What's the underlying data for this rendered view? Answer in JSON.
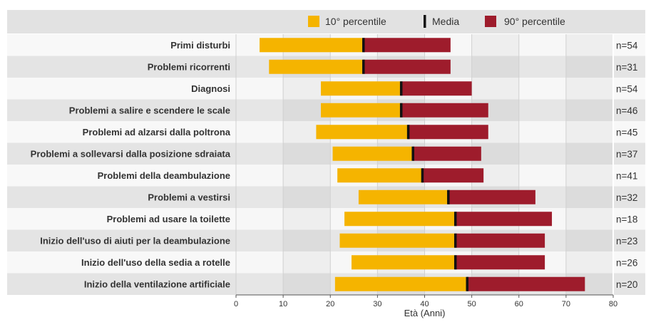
{
  "chart_data": {
    "type": "bar",
    "orientation": "horizontal-range",
    "xlabel": "Età (Anni)",
    "xlim": [
      0,
      80
    ],
    "xticks": [
      0,
      10,
      20,
      30,
      40,
      50,
      60,
      70,
      80
    ],
    "legend": {
      "position": "top",
      "items": [
        {
          "label": "10° percentile",
          "color": "#f5b400",
          "marker": "square"
        },
        {
          "label": "Media",
          "color": "#111111",
          "marker": "bar"
        },
        {
          "label": "90° percentile",
          "color": "#9e1c2c",
          "marker": "square"
        }
      ]
    },
    "colors": {
      "p10": "#f5b400",
      "mean": "#111111",
      "p90": "#9e1c2c"
    },
    "categories": [
      "Primi disturbi",
      "Problemi ricorrenti",
      "Diagnosi",
      "Problemi a salire e scendere le scale",
      "Problemi ad alzarsi dalla poltrona",
      "Problemi a sollevarsi dalla posizione sdraiata",
      "Problemi della deambulazione",
      "Problemi a vestirsi",
      "Problemi ad usare la toilette",
      "Inizio dell'uso di aiuti per la deambulazione",
      "Inizio dell'uso della sedia a rotelle",
      "Inizio della ventilazione artificiale"
    ],
    "series": [
      {
        "name": "10° percentile",
        "values": [
          5,
          7,
          18,
          18,
          17,
          20.5,
          21.5,
          26,
          23,
          22,
          24.5,
          21
        ]
      },
      {
        "name": "Media",
        "values": [
          27,
          27,
          35,
          35,
          36.5,
          37.5,
          39.5,
          45,
          46.5,
          46.5,
          46.5,
          49
        ]
      },
      {
        "name": "90° percentile",
        "values": [
          45.5,
          45.5,
          50,
          53.5,
          53.5,
          52,
          52.5,
          63.5,
          67,
          65.5,
          65.5,
          74
        ]
      }
    ],
    "n_labels": [
      "n=54",
      "n=31",
      "n=54",
      "n=46",
      "n=45",
      "n=37",
      "n=41",
      "n=32",
      "n=18",
      "n=23",
      "n=26",
      "n=20"
    ]
  }
}
